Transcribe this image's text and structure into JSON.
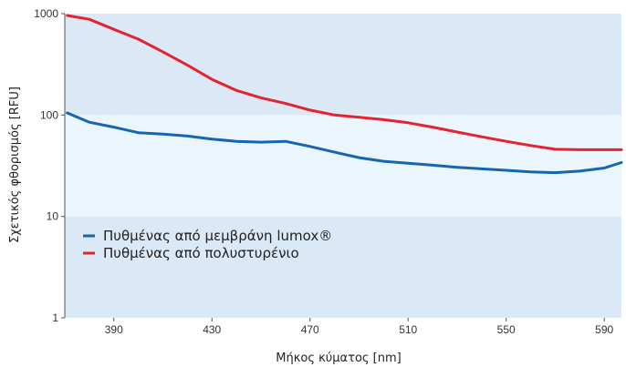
{
  "chart_data": {
    "type": "line",
    "xlabel": "Μήκος κύματος [nm]",
    "ylabel": "Σχετικός φθορισμός [RFU]",
    "x_scale": "linear",
    "y_scale": "log",
    "xlim": [
      370,
      597
    ],
    "ylim": [
      1,
      1000
    ],
    "x_ticks": [
      390,
      430,
      470,
      510,
      550,
      590
    ],
    "y_ticks": [
      1,
      10,
      100,
      1000
    ],
    "y_tick_labels": [
      "1",
      "10",
      "100",
      "1000"
    ],
    "grid": false,
    "legend_position": "lower-left",
    "bands": [
      {
        "from": 1,
        "to": 10,
        "color": "#dbe8f6"
      },
      {
        "from": 10,
        "to": 100,
        "color": "#ebf5fd"
      },
      {
        "from": 100,
        "to": 1000,
        "color": "#dbe8f6"
      }
    ],
    "series": [
      {
        "name": "Πυθμένας από μεμβράνη lumox®",
        "color": "#1565b0",
        "x": [
          371,
          380,
          390,
          400,
          410,
          420,
          430,
          440,
          450,
          460,
          470,
          480,
          490,
          500,
          510,
          520,
          530,
          540,
          550,
          560,
          570,
          580,
          590,
          597
        ],
        "y": [
          105,
          85,
          76,
          67,
          65,
          62,
          58,
          55,
          54,
          55,
          49,
          43,
          38,
          35,
          33.5,
          32,
          30.5,
          29.5,
          28.5,
          27.5,
          27,
          28,
          30,
          34
        ]
      },
      {
        "name": "Πυθμένας από πολυστυρένιο",
        "color": "#e4232f",
        "x": [
          371,
          380,
          390,
          400,
          410,
          420,
          430,
          440,
          450,
          460,
          470,
          480,
          490,
          500,
          510,
          520,
          530,
          540,
          550,
          560,
          570,
          580,
          590,
          597
        ],
        "y": [
          960,
          880,
          700,
          560,
          420,
          310,
          225,
          175,
          148,
          130,
          112,
          100,
          95,
          90,
          84,
          76,
          68,
          61,
          55,
          50,
          46,
          45.5,
          45.5,
          45.5
        ]
      }
    ]
  }
}
